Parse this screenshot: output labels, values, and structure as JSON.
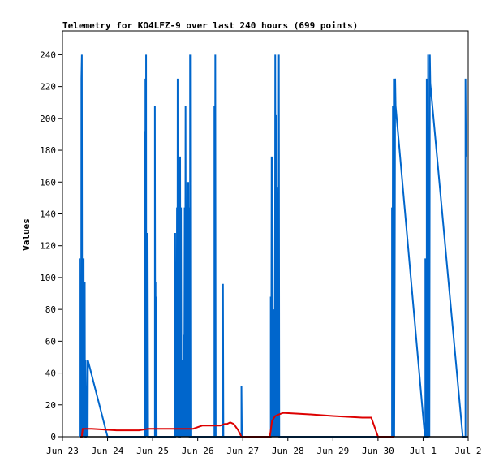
{
  "chart_data": {
    "type": "line",
    "title": "Telemetry for KO4LFZ-9 over last 240 hours (699 points)",
    "xlabel": "",
    "ylabel": "Values",
    "ylim": [
      0,
      255
    ],
    "yticks": [
      0,
      20,
      40,
      60,
      80,
      100,
      120,
      140,
      160,
      180,
      200,
      220,
      240
    ],
    "xlim": [
      "2024-06-23 00:00",
      "2024-07-02 00:00"
    ],
    "xticks": [
      {
        "label": "Jun 23",
        "t": 0
      },
      {
        "label": "Jun 24",
        "t": 1
      },
      {
        "label": "Jun 25",
        "t": 2
      },
      {
        "label": "Jun 26",
        "t": 3
      },
      {
        "label": "Jun 27",
        "t": 4
      },
      {
        "label": "Jun 28",
        "t": 5
      },
      {
        "label": "Jun 29",
        "t": 6
      },
      {
        "label": "Jun 30",
        "t": 7
      },
      {
        "label": "Jul 1",
        "t": 8
      },
      {
        "label": "Jul 2",
        "t": 9
      }
    ],
    "grid": false,
    "colors": {
      "blue": "#0066cc",
      "red": "#dd0000",
      "black": "#000000"
    },
    "series": [
      {
        "color": "#0066cc",
        "points": [
          [
            0.38,
            0
          ],
          [
            0.38,
            112
          ],
          [
            0.39,
            0
          ],
          [
            0.39,
            16
          ],
          [
            0.4,
            0
          ],
          [
            0.41,
            0
          ],
          [
            0.415,
            0
          ],
          [
            0.415,
            16
          ],
          [
            0.42,
            225
          ],
          [
            0.43,
            240
          ],
          [
            0.44,
            0
          ],
          [
            0.45,
            75
          ],
          [
            0.46,
            0
          ],
          [
            0.465,
            64
          ],
          [
            0.47,
            112
          ],
          [
            0.475,
            0
          ],
          [
            0.48,
            64
          ],
          [
            0.49,
            0
          ],
          [
            0.495,
            97
          ],
          [
            0.5,
            0
          ],
          [
            0.505,
            48
          ],
          [
            0.51,
            0
          ],
          [
            0.52,
            0
          ],
          [
            0.525,
            32
          ],
          [
            0.53,
            0
          ],
          [
            0.55,
            48
          ],
          [
            0.56,
            0
          ],
          [
            0.565,
            48
          ],
          [
            1.0,
            0
          ],
          [
            1.82,
            0
          ],
          [
            1.82,
            192
          ],
          [
            1.83,
            0
          ],
          [
            1.835,
            0
          ],
          [
            1.84,
            225
          ],
          [
            1.85,
            0
          ],
          [
            1.855,
            240
          ],
          [
            1.86,
            0
          ],
          [
            1.87,
            56
          ],
          [
            1.88,
            0
          ],
          [
            1.89,
            128
          ],
          [
            1.9,
            0
          ],
          [
            2.05,
            0
          ],
          [
            2.05,
            208
          ],
          [
            2.06,
            0
          ],
          [
            2.065,
            97
          ],
          [
            2.07,
            0
          ],
          [
            2.08,
            88
          ],
          [
            2.09,
            0
          ],
          [
            2.5,
            0
          ],
          [
            2.5,
            128
          ],
          [
            2.51,
            0
          ],
          [
            2.52,
            96
          ],
          [
            2.53,
            0
          ],
          [
            2.54,
            144
          ],
          [
            2.55,
            0
          ],
          [
            2.555,
            225
          ],
          [
            2.56,
            0
          ],
          [
            2.57,
            80
          ],
          [
            2.58,
            0
          ],
          [
            2.61,
            0
          ],
          [
            2.61,
            176
          ],
          [
            2.62,
            0
          ],
          [
            2.63,
            144
          ],
          [
            2.64,
            0
          ],
          [
            2.65,
            48
          ],
          [
            2.66,
            0
          ],
          [
            2.67,
            48
          ],
          [
            2.68,
            0
          ],
          [
            2.69,
            64
          ],
          [
            2.7,
            0
          ],
          [
            2.71,
            144
          ],
          [
            2.72,
            0
          ],
          [
            2.73,
            208
          ],
          [
            2.74,
            0
          ],
          [
            2.75,
            80
          ],
          [
            2.76,
            0
          ],
          [
            2.77,
            160
          ],
          [
            2.78,
            0
          ],
          [
            2.79,
            160
          ],
          [
            2.8,
            0
          ],
          [
            2.81,
            144
          ],
          [
            2.82,
            0
          ],
          [
            2.83,
            0
          ],
          [
            2.83,
            240
          ],
          [
            2.84,
            0
          ],
          [
            2.85,
            240
          ],
          [
            2.86,
            0
          ],
          [
            3.37,
            0
          ],
          [
            3.37,
            208
          ],
          [
            3.38,
            0
          ],
          [
            3.39,
            240
          ],
          [
            3.4,
            0
          ],
          [
            3.55,
            0
          ],
          [
            3.55,
            56
          ],
          [
            3.56,
            96
          ],
          [
            3.57,
            0
          ],
          [
            3.97,
            0
          ],
          [
            3.97,
            32
          ],
          [
            3.98,
            0
          ],
          [
            4.62,
            0
          ],
          [
            4.62,
            88
          ],
          [
            4.63,
            0
          ],
          [
            4.64,
            176
          ],
          [
            4.65,
            0
          ],
          [
            4.66,
            176
          ],
          [
            4.67,
            0
          ],
          [
            4.68,
            64
          ],
          [
            4.69,
            0
          ],
          [
            4.7,
            80
          ],
          [
            4.71,
            0
          ],
          [
            4.72,
            240
          ],
          [
            4.73,
            0
          ],
          [
            4.74,
            202
          ],
          [
            4.75,
            0
          ],
          [
            4.76,
            157
          ],
          [
            4.77,
            0
          ],
          [
            4.78,
            112
          ],
          [
            4.79,
            0
          ],
          [
            4.8,
            240
          ],
          [
            4.81,
            0
          ],
          [
            7.31,
            0
          ],
          [
            7.31,
            144
          ],
          [
            7.32,
            0
          ],
          [
            7.33,
            208
          ],
          [
            7.34,
            0
          ],
          [
            7.35,
            225
          ],
          [
            7.36,
            0
          ],
          [
            7.37,
            96
          ],
          [
            7.38,
            225
          ],
          [
            7.39,
            208
          ],
          [
            8.04,
            0
          ],
          [
            8.05,
            0
          ],
          [
            8.05,
            112
          ],
          [
            8.06,
            0
          ],
          [
            8.08,
            0
          ],
          [
            8.08,
            225
          ],
          [
            8.09,
            0
          ],
          [
            8.11,
            0
          ],
          [
            8.11,
            240
          ],
          [
            8.12,
            0
          ],
          [
            8.13,
            40
          ],
          [
            8.14,
            0
          ],
          [
            8.15,
            240
          ],
          [
            8.16,
            222
          ],
          [
            8.88,
            0
          ],
          [
            8.94,
            0
          ],
          [
            8.94,
            225
          ],
          [
            8.95,
            176
          ],
          [
            8.96,
            192
          ]
        ]
      },
      {
        "color": "#dd0000",
        "points": [
          [
            0.4,
            0
          ],
          [
            0.405,
            0
          ],
          [
            0.41,
            0
          ],
          [
            0.43,
            0
          ],
          [
            0.44,
            3
          ],
          [
            0.45,
            5
          ],
          [
            0.55,
            5
          ],
          [
            0.65,
            5
          ],
          [
            1.2,
            4
          ],
          [
            1.5,
            4
          ],
          [
            1.7,
            4
          ],
          [
            1.9,
            5
          ],
          [
            2.1,
            5
          ],
          [
            2.5,
            5
          ],
          [
            2.7,
            5
          ],
          [
            2.9,
            5
          ],
          [
            3.0,
            6
          ],
          [
            3.1,
            7
          ],
          [
            3.3,
            7
          ],
          [
            3.5,
            7
          ],
          [
            3.6,
            8
          ],
          [
            3.65,
            8
          ],
          [
            3.72,
            9
          ],
          [
            3.8,
            8
          ],
          [
            3.9,
            4
          ],
          [
            3.97,
            0
          ],
          [
            4.6,
            0
          ],
          [
            4.65,
            10
          ],
          [
            4.72,
            13
          ],
          [
            4.8,
            14
          ],
          [
            4.9,
            15
          ],
          [
            5.5,
            14
          ],
          [
            6.0,
            13
          ],
          [
            6.65,
            12
          ],
          [
            6.85,
            12
          ],
          [
            7.0,
            0
          ],
          [
            7.35,
            0
          ]
        ]
      },
      {
        "color": "#000000",
        "points": [
          [
            0.38,
            0
          ],
          [
            1.0,
            0
          ],
          [
            2.0,
            0
          ],
          [
            3.0,
            0
          ],
          [
            4.0,
            0
          ],
          [
            5.0,
            0
          ],
          [
            6.0,
            0
          ],
          [
            7.0,
            0
          ],
          [
            8.0,
            0
          ],
          [
            8.9,
            0
          ],
          [
            9.0,
            0
          ]
        ]
      }
    ]
  }
}
